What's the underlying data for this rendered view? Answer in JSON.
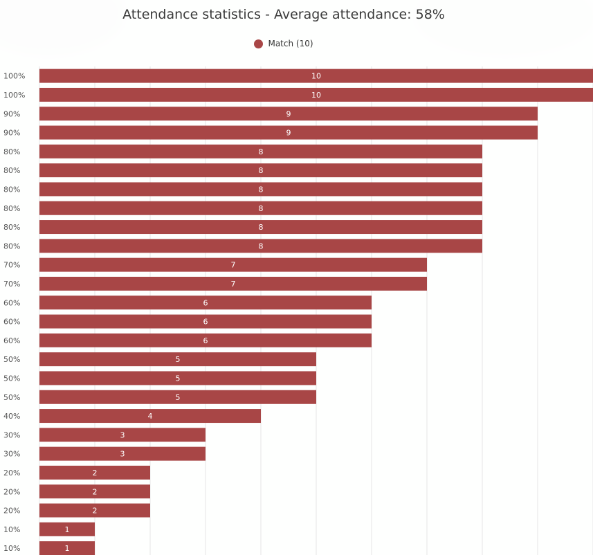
{
  "chart_data": {
    "type": "bar",
    "orientation": "horizontal",
    "title": "Attendance statistics - Average attendance: 58%",
    "legend": {
      "position": "top-center"
    },
    "series": [
      {
        "name": "Match (10)",
        "color": "#a84646",
        "values": [
          10,
          10,
          9,
          9,
          8,
          8,
          8,
          8,
          8,
          8,
          7,
          7,
          6,
          6,
          6,
          5,
          5,
          5,
          4,
          3,
          3,
          2,
          2,
          2,
          1,
          1
        ]
      }
    ],
    "categories": [
      "100%",
      "100%",
      "90%",
      "90%",
      "80%",
      "80%",
      "80%",
      "80%",
      "80%",
      "80%",
      "70%",
      "70%",
      "60%",
      "60%",
      "60%",
      "50%",
      "50%",
      "50%",
      "40%",
      "30%",
      "30%",
      "20%",
      "20%",
      "20%",
      "10%",
      "10%"
    ],
    "xlim": [
      0,
      10
    ],
    "grid": true
  }
}
